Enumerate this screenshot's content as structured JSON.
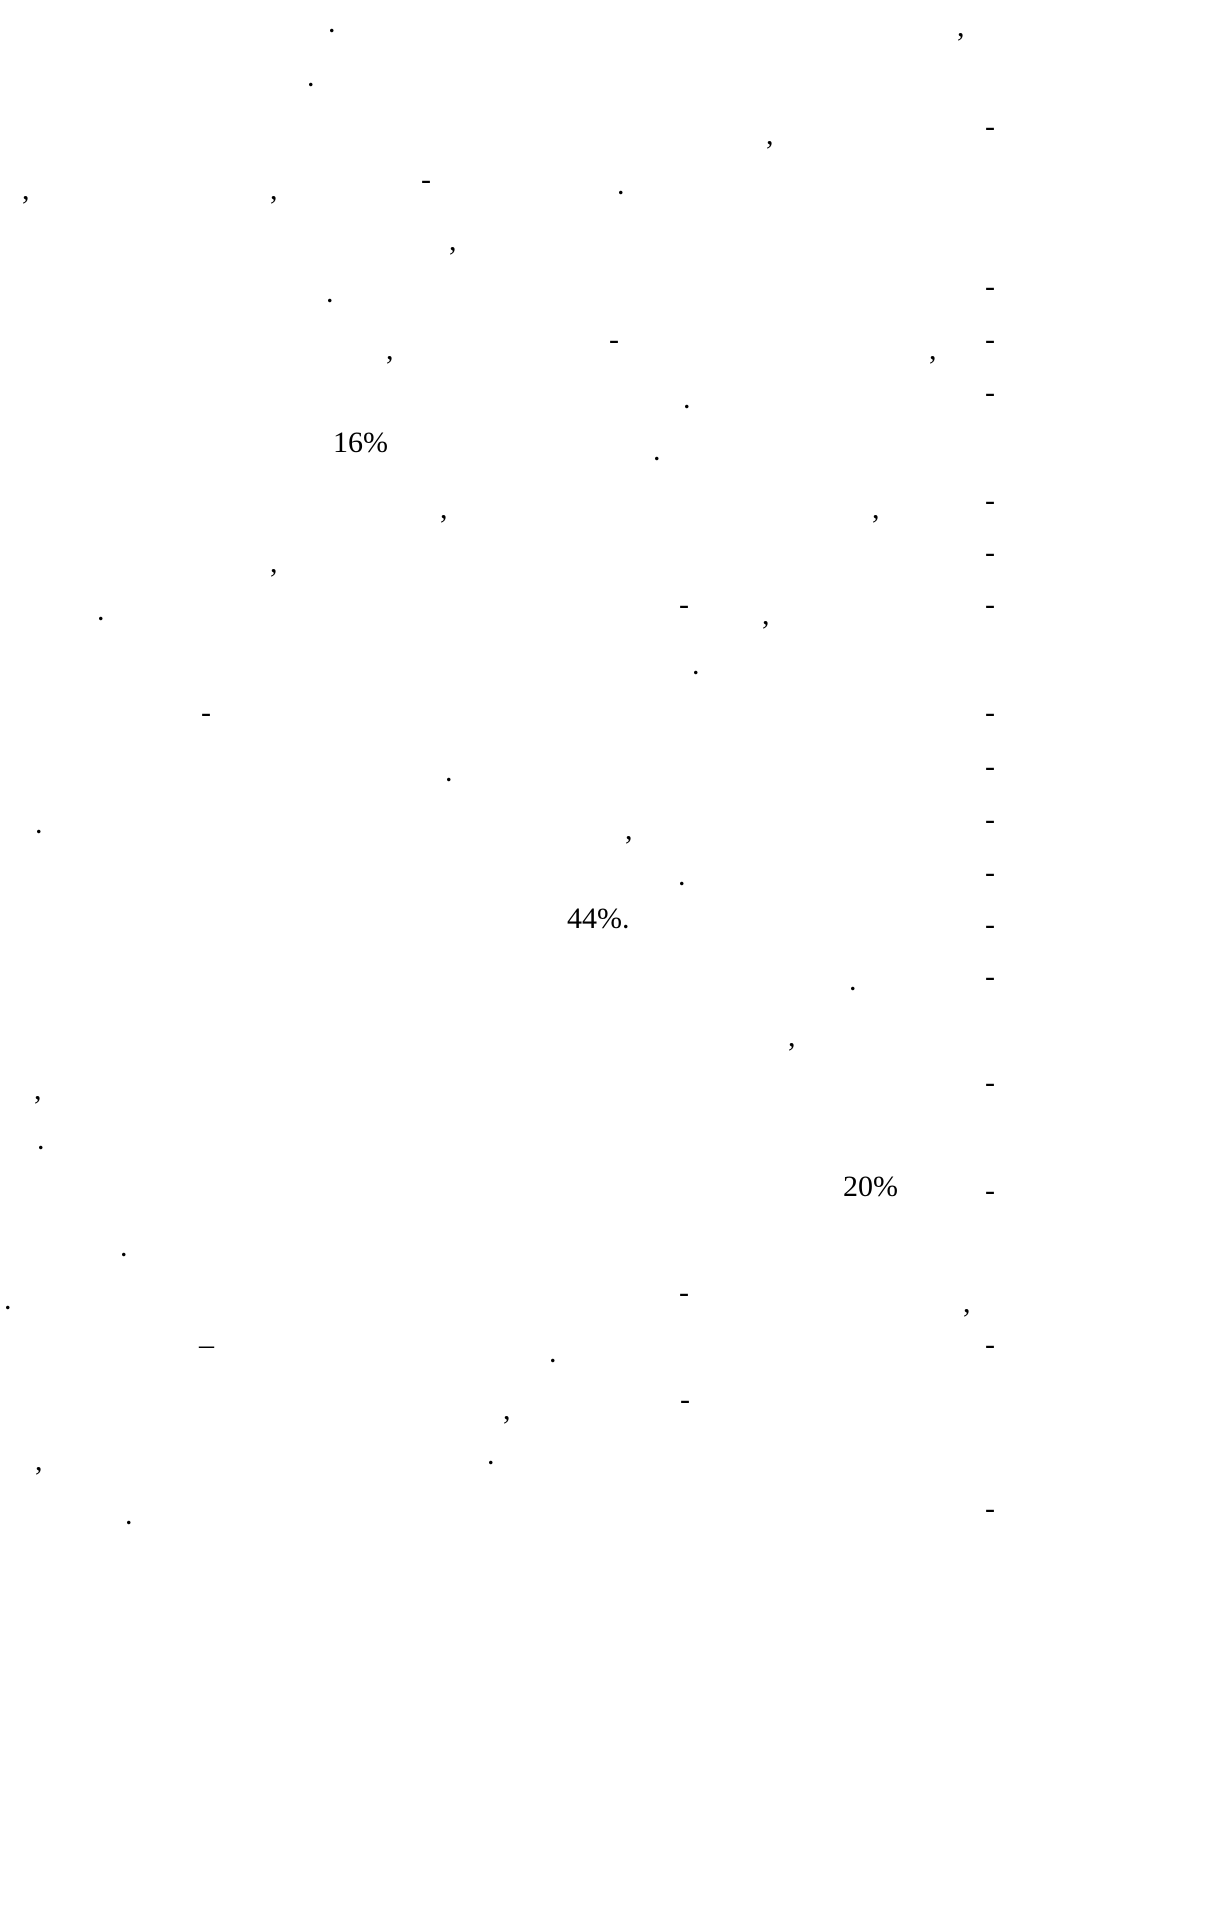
{
  "document": {
    "marks": [
      ".",
      ",",
      ".",
      ",",
      "-",
      ",",
      ",",
      "-",
      ".",
      ",",
      ".",
      "-",
      ",",
      "-",
      ",",
      "-",
      ".",
      "-",
      "16%",
      ".",
      ",",
      ",",
      "-",
      ",",
      "-",
      ".",
      "-",
      ",",
      "-",
      ".",
      "-",
      "-",
      ".",
      "-",
      ".",
      ",",
      "-",
      ".",
      "-",
      "44%.",
      "-",
      ".",
      "-",
      ",",
      ",",
      "-",
      ".",
      "20%",
      "-",
      ".",
      ".",
      "-",
      ",",
      "–",
      ".",
      "-",
      ",",
      "-",
      ",",
      ".",
      ".",
      "-"
    ]
  }
}
